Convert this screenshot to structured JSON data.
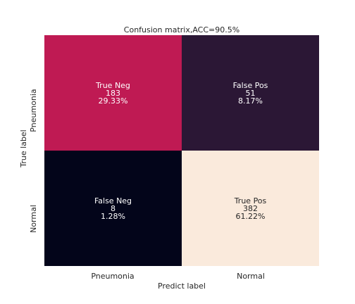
{
  "chart_data": {
    "type": "heatmap",
    "title": "Confusion matrix,ACC=90.5%",
    "xlabel": "Predict label",
    "ylabel": "True label",
    "x_categories": [
      "Pneumonia",
      "Normal"
    ],
    "y_categories": [
      "Pneumonia",
      "Normal"
    ],
    "cells": [
      [
        {
          "label": "True Neg",
          "count": 183,
          "percent": "29.33%",
          "color": "#bf1a53",
          "text_color": "#ffffff"
        },
        {
          "label": "False Pos",
          "count": 51,
          "percent": "8.17%",
          "color": "#2b1735",
          "text_color": "#ffffff"
        }
      ],
      [
        {
          "label": "False Neg",
          "count": 8,
          "percent": "1.28%",
          "color": "#03051a",
          "text_color": "#ffffff"
        },
        {
          "label": "True Pos",
          "count": 382,
          "percent": "61.22%",
          "color": "#faeadc",
          "text_color": "#262626"
        }
      ]
    ],
    "colorbar": false,
    "grid": false
  }
}
